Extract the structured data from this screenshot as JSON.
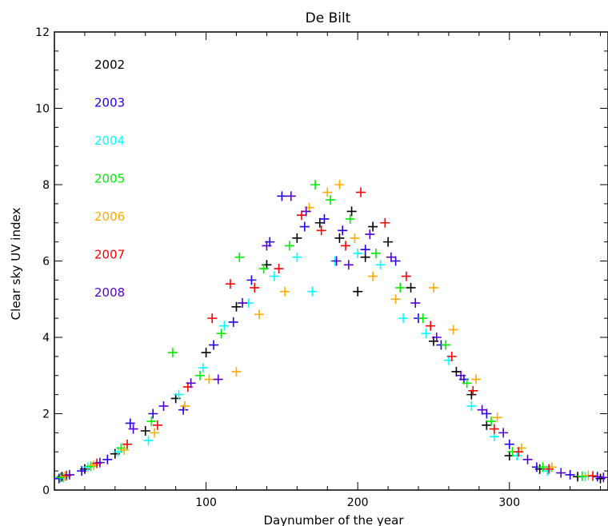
{
  "chart_data": {
    "type": "scatter",
    "title": "De Bilt",
    "xlabel": "Daynumber of the year",
    "ylabel": "Clear sky UV index",
    "xlim": [
      0,
      365
    ],
    "ylim": [
      0,
      12
    ],
    "x_ticks": [
      100,
      200,
      300
    ],
    "y_ticks": [
      0,
      2,
      4,
      6,
      8,
      10,
      12
    ],
    "grid": false,
    "legend_position": "top-left",
    "marker": "plus",
    "series": [
      {
        "name": "2002",
        "color": "#000000",
        "points": [
          [
            5,
            0.35
          ],
          [
            20,
            0.55
          ],
          [
            40,
            0.95
          ],
          [
            60,
            1.55
          ],
          [
            80,
            2.4
          ],
          [
            100,
            3.6
          ],
          [
            120,
            4.8
          ],
          [
            140,
            5.9
          ],
          [
            160,
            6.6
          ],
          [
            175,
            7.0
          ],
          [
            188,
            6.6
          ],
          [
            196,
            7.3
          ],
          [
            200,
            5.2
          ],
          [
            205,
            6.1
          ],
          [
            210,
            6.9
          ],
          [
            220,
            6.5
          ],
          [
            235,
            5.3
          ],
          [
            250,
            3.9
          ],
          [
            265,
            3.1
          ],
          [
            275,
            2.5
          ],
          [
            285,
            1.7
          ],
          [
            300,
            0.9
          ],
          [
            320,
            0.55
          ],
          [
            345,
            0.35
          ],
          [
            360,
            0.3
          ]
        ]
      },
      {
        "name": "2003",
        "color": "#2200ee",
        "points": [
          [
            3,
            0.3
          ],
          [
            18,
            0.5
          ],
          [
            35,
            0.8
          ],
          [
            50,
            1.75
          ],
          [
            65,
            2.0
          ],
          [
            85,
            2.1
          ],
          [
            105,
            3.8
          ],
          [
            118,
            4.4
          ],
          [
            130,
            5.5
          ],
          [
            142,
            6.5
          ],
          [
            150,
            7.7
          ],
          [
            165,
            6.9
          ],
          [
            178,
            7.1
          ],
          [
            190,
            6.8
          ],
          [
            205,
            6.3
          ],
          [
            225,
            6.0
          ],
          [
            240,
            4.5
          ],
          [
            255,
            3.8
          ],
          [
            270,
            2.9
          ],
          [
            285,
            2.0
          ],
          [
            300,
            1.2
          ],
          [
            318,
            0.6
          ],
          [
            340,
            0.4
          ],
          [
            358,
            0.35
          ]
        ]
      },
      {
        "name": "2004",
        "color": "#00ffff",
        "points": [
          [
            6,
            0.32
          ],
          [
            22,
            0.6
          ],
          [
            42,
            1.0
          ],
          [
            62,
            1.3
          ],
          [
            82,
            2.5
          ],
          [
            98,
            3.2
          ],
          [
            112,
            4.3
          ],
          [
            128,
            4.9
          ],
          [
            145,
            5.6
          ],
          [
            160,
            6.1
          ],
          [
            170,
            5.2
          ],
          [
            185,
            6.0
          ],
          [
            200,
            6.2
          ],
          [
            215,
            5.9
          ],
          [
            230,
            4.5
          ],
          [
            245,
            4.1
          ],
          [
            260,
            3.4
          ],
          [
            275,
            2.2
          ],
          [
            290,
            1.4
          ],
          [
            305,
            0.9
          ],
          [
            325,
            0.5
          ],
          [
            350,
            0.35
          ]
        ]
      },
      {
        "name": "2005",
        "color": "#00ee00",
        "points": [
          [
            4,
            0.33
          ],
          [
            24,
            0.62
          ],
          [
            44,
            1.1
          ],
          [
            64,
            1.8
          ],
          [
            78,
            3.6
          ],
          [
            96,
            3.0
          ],
          [
            110,
            4.1
          ],
          [
            122,
            6.1
          ],
          [
            138,
            5.8
          ],
          [
            155,
            6.4
          ],
          [
            172,
            8.0
          ],
          [
            182,
            7.6
          ],
          [
            195,
            7.1
          ],
          [
            212,
            6.2
          ],
          [
            228,
            5.3
          ],
          [
            243,
            4.5
          ],
          [
            258,
            3.8
          ],
          [
            272,
            2.8
          ],
          [
            288,
            1.8
          ],
          [
            302,
            1.0
          ],
          [
            322,
            0.6
          ],
          [
            348,
            0.36
          ]
        ]
      },
      {
        "name": "2006",
        "color": "#ffaa00",
        "points": [
          [
            7,
            0.36
          ],
          [
            26,
            0.65
          ],
          [
            46,
            1.05
          ],
          [
            66,
            1.5
          ],
          [
            86,
            2.2
          ],
          [
            102,
            2.9
          ],
          [
            120,
            3.1
          ],
          [
            135,
            4.6
          ],
          [
            152,
            5.2
          ],
          [
            168,
            7.4
          ],
          [
            180,
            7.8
          ],
          [
            188,
            8.0
          ],
          [
            198,
            6.6
          ],
          [
            210,
            5.6
          ],
          [
            225,
            5.0
          ],
          [
            250,
            5.3
          ],
          [
            263,
            4.2
          ],
          [
            278,
            2.9
          ],
          [
            292,
            1.9
          ],
          [
            308,
            1.1
          ],
          [
            328,
            0.6
          ],
          [
            352,
            0.38
          ]
        ]
      },
      {
        "name": "2007",
        "color": "#ff0000",
        "points": [
          [
            8,
            0.38
          ],
          [
            28,
            0.7
          ],
          [
            48,
            1.2
          ],
          [
            68,
            1.7
          ],
          [
            88,
            2.7
          ],
          [
            104,
            4.5
          ],
          [
            116,
            5.4
          ],
          [
            132,
            5.3
          ],
          [
            148,
            5.8
          ],
          [
            163,
            7.2
          ],
          [
            176,
            6.8
          ],
          [
            192,
            6.4
          ],
          [
            202,
            7.8
          ],
          [
            218,
            7.0
          ],
          [
            232,
            5.6
          ],
          [
            248,
            4.3
          ],
          [
            262,
            3.5
          ],
          [
            276,
            2.6
          ],
          [
            290,
            1.6
          ],
          [
            306,
            1.0
          ],
          [
            326,
            0.55
          ],
          [
            355,
            0.37
          ]
        ]
      },
      {
        "name": "2008",
        "color": "#5500cc",
        "points": [
          [
            10,
            0.4
          ],
          [
            30,
            0.72
          ],
          [
            52,
            1.6
          ],
          [
            72,
            2.2
          ],
          [
            90,
            2.8
          ],
          [
            108,
            2.9
          ],
          [
            124,
            4.9
          ],
          [
            140,
            6.4
          ],
          [
            156,
            7.7
          ],
          [
            166,
            7.3
          ],
          [
            186,
            6.0
          ],
          [
            194,
            5.9
          ],
          [
            208,
            6.7
          ],
          [
            222,
            6.1
          ],
          [
            238,
            4.9
          ],
          [
            252,
            4.0
          ],
          [
            268,
            3.0
          ],
          [
            282,
            2.1
          ],
          [
            296,
            1.5
          ],
          [
            312,
            0.8
          ],
          [
            334,
            0.45
          ],
          [
            362,
            0.33
          ]
        ]
      }
    ]
  }
}
